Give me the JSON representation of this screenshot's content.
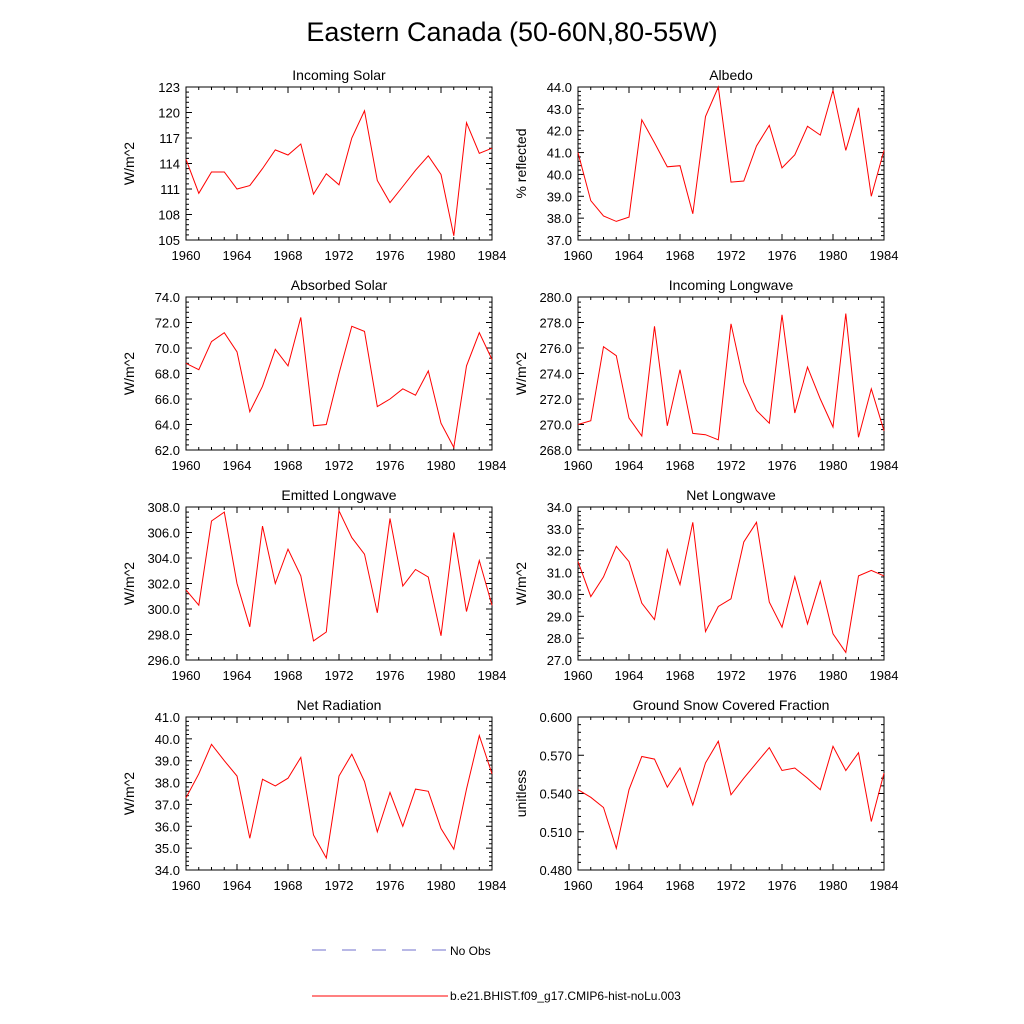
{
  "title": "Eastern Canada (50-60N,80-55W)",
  "x_tick_labels": [
    "1960",
    "1964",
    "1968",
    "1972",
    "1976",
    "1980",
    "1984"
  ],
  "legend": {
    "items": [
      {
        "label": "No Obs",
        "color": "#7070cc",
        "style": "dashed"
      },
      {
        "label": "b.e21.BHIST.f09_g17.CMIP6-hist-noLu.003",
        "color": "#ff0000",
        "style": "solid"
      }
    ]
  },
  "chart_data": [
    {
      "type": "line",
      "title": "Incoming Solar",
      "ylabel": "W/m^2",
      "xlim": [
        1960,
        1984
      ],
      "ylim": [
        105,
        123
      ],
      "yticks": [
        "105",
        "108",
        "111",
        "114",
        "117",
        "120",
        "123"
      ],
      "x": [
        1960,
        1961,
        1962,
        1963,
        1964,
        1965,
        1966,
        1967,
        1968,
        1969,
        1970,
        1971,
        1972,
        1973,
        1974,
        1975,
        1976,
        1977,
        1978,
        1979,
        1980,
        1981,
        1982,
        1983,
        1984
      ],
      "series": [
        {
          "values": [
            114.5,
            110.5,
            113.0,
            113.0,
            111.0,
            111.4,
            113.4,
            115.6,
            115.0,
            116.3,
            110.4,
            112.8,
            111.5,
            117.0,
            120.2,
            112.0,
            109.4,
            111.3,
            113.2,
            114.9,
            112.7,
            105.5,
            118.8,
            115.2,
            115.8
          ],
          "color": "#ff0000"
        }
      ]
    },
    {
      "type": "line",
      "title": "Albedo",
      "ylabel": "% reflected",
      "xlim": [
        1960,
        1984
      ],
      "ylim": [
        37.0,
        44.0
      ],
      "yticks": [
        "37.0",
        "38.0",
        "39.0",
        "40.0",
        "41.0",
        "42.0",
        "43.0",
        "44.0"
      ],
      "x": [
        1960,
        1961,
        1962,
        1963,
        1964,
        1965,
        1966,
        1967,
        1968,
        1969,
        1970,
        1971,
        1972,
        1973,
        1974,
        1975,
        1976,
        1977,
        1978,
        1979,
        1980,
        1981,
        1982,
        1983,
        1984
      ],
      "series": [
        {
          "values": [
            41.0,
            38.8,
            38.1,
            37.85,
            38.05,
            42.5,
            41.45,
            40.35,
            40.4,
            38.2,
            42.65,
            44.0,
            39.65,
            39.7,
            41.3,
            42.25,
            40.3,
            40.9,
            42.2,
            41.8,
            43.85,
            41.1,
            43.05,
            39.0,
            41.1
          ],
          "color": "#ff0000"
        }
      ]
    },
    {
      "type": "line",
      "title": "Absorbed Solar",
      "ylabel": "W/m^2",
      "xlim": [
        1960,
        1984
      ],
      "ylim": [
        62.0,
        74.0
      ],
      "yticks": [
        "62.0",
        "64.0",
        "66.0",
        "68.0",
        "70.0",
        "72.0",
        "74.0"
      ],
      "x": [
        1960,
        1961,
        1962,
        1963,
        1964,
        1965,
        1966,
        1967,
        1968,
        1969,
        1970,
        1971,
        1972,
        1973,
        1974,
        1975,
        1976,
        1977,
        1978,
        1979,
        1980,
        1981,
        1982,
        1983,
        1984
      ],
      "series": [
        {
          "values": [
            68.8,
            68.3,
            70.5,
            71.2,
            69.7,
            65.0,
            67.0,
            69.9,
            68.6,
            72.4,
            63.9,
            64.0,
            68.0,
            71.7,
            71.3,
            65.4,
            66.0,
            66.8,
            66.3,
            68.2,
            64.1,
            62.2,
            68.6,
            71.2,
            69.1
          ],
          "color": "#ff0000"
        }
      ]
    },
    {
      "type": "line",
      "title": "Incoming Longwave",
      "ylabel": "W/m^2",
      "xlim": [
        1960,
        1984
      ],
      "ylim": [
        268.0,
        280.0
      ],
      "yticks": [
        "268.0",
        "270.0",
        "272.0",
        "274.0",
        "276.0",
        "278.0",
        "280.0"
      ],
      "x": [
        1960,
        1961,
        1962,
        1963,
        1964,
        1965,
        1966,
        1967,
        1968,
        1969,
        1970,
        1971,
        1972,
        1973,
        1974,
        1975,
        1976,
        1977,
        1978,
        1979,
        1980,
        1981,
        1982,
        1983,
        1984
      ],
      "series": [
        {
          "values": [
            270.0,
            270.3,
            276.1,
            275.4,
            270.5,
            269.1,
            277.7,
            269.9,
            274.3,
            269.3,
            269.2,
            268.8,
            277.9,
            273.3,
            271.1,
            270.1,
            278.6,
            270.9,
            274.5,
            272.0,
            269.8,
            278.7,
            269.0,
            272.8,
            269.5
          ],
          "color": "#ff0000"
        }
      ]
    },
    {
      "type": "line",
      "title": "Emitted Longwave",
      "ylabel": "W/m^2",
      "xlim": [
        1960,
        1984
      ],
      "ylim": [
        296.0,
        308.0
      ],
      "yticks": [
        "296.0",
        "298.0",
        "300.0",
        "302.0",
        "304.0",
        "306.0",
        "308.0"
      ],
      "x": [
        1960,
        1961,
        1962,
        1963,
        1964,
        1965,
        1966,
        1967,
        1968,
        1969,
        1970,
        1971,
        1972,
        1973,
        1974,
        1975,
        1976,
        1977,
        1978,
        1979,
        1980,
        1981,
        1982,
        1983,
        1984
      ],
      "series": [
        {
          "values": [
            301.5,
            300.3,
            306.9,
            307.6,
            302.0,
            298.6,
            306.5,
            302.0,
            304.7,
            302.6,
            297.5,
            298.2,
            307.7,
            305.6,
            304.3,
            299.7,
            307.1,
            301.8,
            303.1,
            302.5,
            297.9,
            306.0,
            299.8,
            303.8,
            300.3
          ],
          "color": "#ff0000"
        }
      ]
    },
    {
      "type": "line",
      "title": "Net Longwave",
      "ylabel": "W/m^2",
      "xlim": [
        1960,
        1984
      ],
      "ylim": [
        27.0,
        34.0
      ],
      "yticks": [
        "27.0",
        "28.0",
        "29.0",
        "30.0",
        "31.0",
        "32.0",
        "33.0",
        "34.0"
      ],
      "x": [
        1960,
        1961,
        1962,
        1963,
        1964,
        1965,
        1966,
        1967,
        1968,
        1969,
        1970,
        1971,
        1972,
        1973,
        1974,
        1975,
        1976,
        1977,
        1978,
        1979,
        1980,
        1981,
        1982,
        1983,
        1984
      ],
      "series": [
        {
          "values": [
            31.5,
            29.9,
            30.8,
            32.2,
            31.5,
            29.6,
            28.85,
            32.05,
            30.45,
            33.3,
            28.3,
            29.45,
            29.8,
            32.4,
            33.3,
            29.65,
            28.5,
            30.8,
            28.65,
            30.6,
            28.2,
            27.35,
            30.85,
            31.1,
            30.85
          ],
          "color": "#ff0000"
        }
      ]
    },
    {
      "type": "line",
      "title": "Net Radiation",
      "ylabel": "W/m^2",
      "xlim": [
        1960,
        1984
      ],
      "ylim": [
        34.0,
        41.0
      ],
      "yticks": [
        "34.0",
        "35.0",
        "36.0",
        "37.0",
        "38.0",
        "39.0",
        "40.0",
        "41.0"
      ],
      "x": [
        1960,
        1961,
        1962,
        1963,
        1964,
        1965,
        1966,
        1967,
        1968,
        1969,
        1970,
        1971,
        1972,
        1973,
        1974,
        1975,
        1976,
        1977,
        1978,
        1979,
        1980,
        1981,
        1982,
        1983,
        1984
      ],
      "series": [
        {
          "values": [
            37.3,
            38.4,
            39.75,
            39.0,
            38.3,
            35.45,
            38.15,
            37.85,
            38.2,
            39.15,
            35.6,
            34.55,
            38.3,
            39.3,
            38.05,
            35.75,
            37.55,
            36.0,
            37.7,
            37.6,
            35.9,
            34.95,
            37.7,
            40.15,
            38.4
          ],
          "color": "#ff0000"
        }
      ]
    },
    {
      "type": "line",
      "title": "Ground Snow Covered Fraction",
      "ylabel": "unitless",
      "xlim": [
        1960,
        1984
      ],
      "ylim": [
        0.48,
        0.6
      ],
      "yticks": [
        "0.480",
        "0.510",
        "0.540",
        "0.570",
        "0.600"
      ],
      "x": [
        1960,
        1961,
        1962,
        1963,
        1964,
        1965,
        1966,
        1967,
        1968,
        1969,
        1970,
        1971,
        1972,
        1973,
        1974,
        1975,
        1976,
        1977,
        1978,
        1979,
        1980,
        1981,
        1982,
        1983,
        1984
      ],
      "series": [
        {
          "values": [
            0.543,
            0.537,
            0.529,
            0.497,
            0.543,
            0.569,
            0.567,
            0.545,
            0.56,
            0.531,
            0.564,
            0.581,
            0.539,
            0.552,
            0.564,
            0.576,
            0.558,
            0.56,
            0.552,
            0.543,
            0.577,
            0.558,
            0.572,
            0.518,
            0.556
          ],
          "color": "#ff0000"
        }
      ]
    }
  ]
}
